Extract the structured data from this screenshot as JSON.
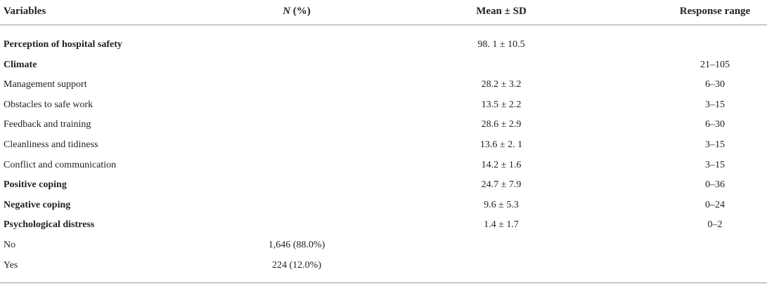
{
  "table": {
    "header": [
      {
        "text": "Variables"
      },
      {
        "italic": "N",
        "text": " (%)"
      },
      {
        "text": "Mean ± SD"
      },
      {
        "text": "Response range"
      }
    ],
    "rows": [
      {
        "bold": true,
        "cells": [
          "Perception of hospital safety",
          null,
          "98. 1 ± 10.5",
          null
        ]
      },
      {
        "bold": true,
        "cells": [
          "Climate",
          null,
          null,
          "21–105"
        ]
      },
      {
        "bold": false,
        "cells": [
          "Management support",
          null,
          "28.2 ± 3.2",
          "6–30"
        ]
      },
      {
        "bold": false,
        "cells": [
          "Obstacles to safe work",
          null,
          "13.5 ± 2.2",
          "3–15"
        ]
      },
      {
        "bold": false,
        "cells": [
          "Feedback and training",
          null,
          "28.6 ± 2.9",
          "6–30"
        ]
      },
      {
        "bold": false,
        "cells": [
          "Cleanliness and tidiness",
          null,
          "13.6 ± 2. 1",
          "3–15"
        ]
      },
      {
        "bold": false,
        "cells": [
          "Conflict and communication",
          null,
          "14.2 ± 1.6",
          "3–15"
        ]
      },
      {
        "bold": true,
        "cells": [
          "Positive coping",
          null,
          "24.7 ± 7.9",
          "0–36"
        ]
      },
      {
        "bold": true,
        "cells": [
          "Negative coping",
          null,
          "9.6 ± 5.3",
          "0–24"
        ]
      },
      {
        "bold": true,
        "cells": [
          "Psychological distress",
          null,
          "1.4 ± 1.7",
          "0–2"
        ]
      },
      {
        "bold": false,
        "cells": [
          "No",
          "1,646 (88.0%)",
          null,
          null
        ]
      },
      {
        "bold": false,
        "cells": [
          "Yes",
          "224 (12.0%)",
          null,
          null
        ]
      }
    ]
  }
}
